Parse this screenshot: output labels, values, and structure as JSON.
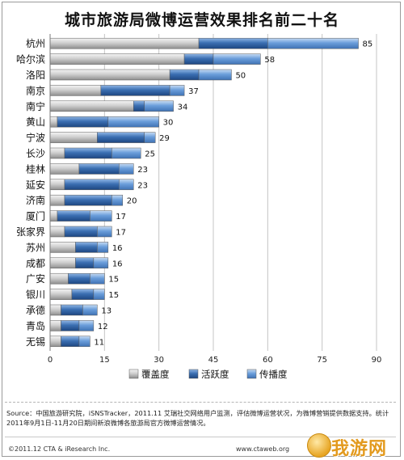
{
  "page": {
    "source_text": "Source：中国旅游研究院，iSNSTracker，2011.11  艾瑞社交网络用户监测，评估微博运营状况，为微博营销提供数据支持。统计2011年9月1日-11月20日期间新浪微博各旅游局官方微博运营情况。",
    "footer_left": "©2011.12 CTA & iResearch Inc.",
    "footer_mid": "www.ctaweb.org",
    "watermark_text": "我游网"
  },
  "chart_data": {
    "type": "bar",
    "orientation": "horizontal",
    "stacked": true,
    "title": "城市旅游局微博运营效果排名前二十名",
    "categories": [
      "杭州",
      "哈尔滨",
      "洛阳",
      "南京",
      "南宁",
      "黄山",
      "宁波",
      "长沙",
      "桂林",
      "延安",
      "济南",
      "厦门",
      "张家界",
      "苏州",
      "成都",
      "广安",
      "银川",
      "承德",
      "青岛",
      "无锡"
    ],
    "totals": [
      85,
      58,
      50,
      37,
      34,
      30,
      29,
      25,
      23,
      23,
      20,
      17,
      17,
      16,
      16,
      15,
      15,
      13,
      12,
      11
    ],
    "series": [
      {
        "name": "覆盖度",
        "color": "#c9c9c9",
        "values": [
          41,
          37,
          33,
          14,
          23,
          2,
          13,
          4,
          8,
          4,
          4,
          2,
          4,
          7,
          7,
          5,
          6,
          3,
          3,
          3
        ]
      },
      {
        "name": "活跃度",
        "color": "#3a6fb0",
        "values": [
          19,
          8,
          8,
          19,
          3,
          14,
          13,
          13,
          11,
          15,
          13,
          9,
          9,
          6,
          5,
          6,
          6,
          6,
          5,
          5
        ]
      },
      {
        "name": "传播度",
        "color": "#6fa0dc",
        "values": [
          25,
          13,
          9,
          4,
          8,
          14,
          3,
          8,
          4,
          4,
          3,
          6,
          4,
          3,
          4,
          4,
          3,
          4,
          4,
          3
        ]
      }
    ],
    "xlim": [
      0,
      90
    ],
    "xticks": [
      0,
      15,
      30,
      45,
      60,
      75,
      90
    ],
    "grid": true,
    "legend": "bottom"
  }
}
